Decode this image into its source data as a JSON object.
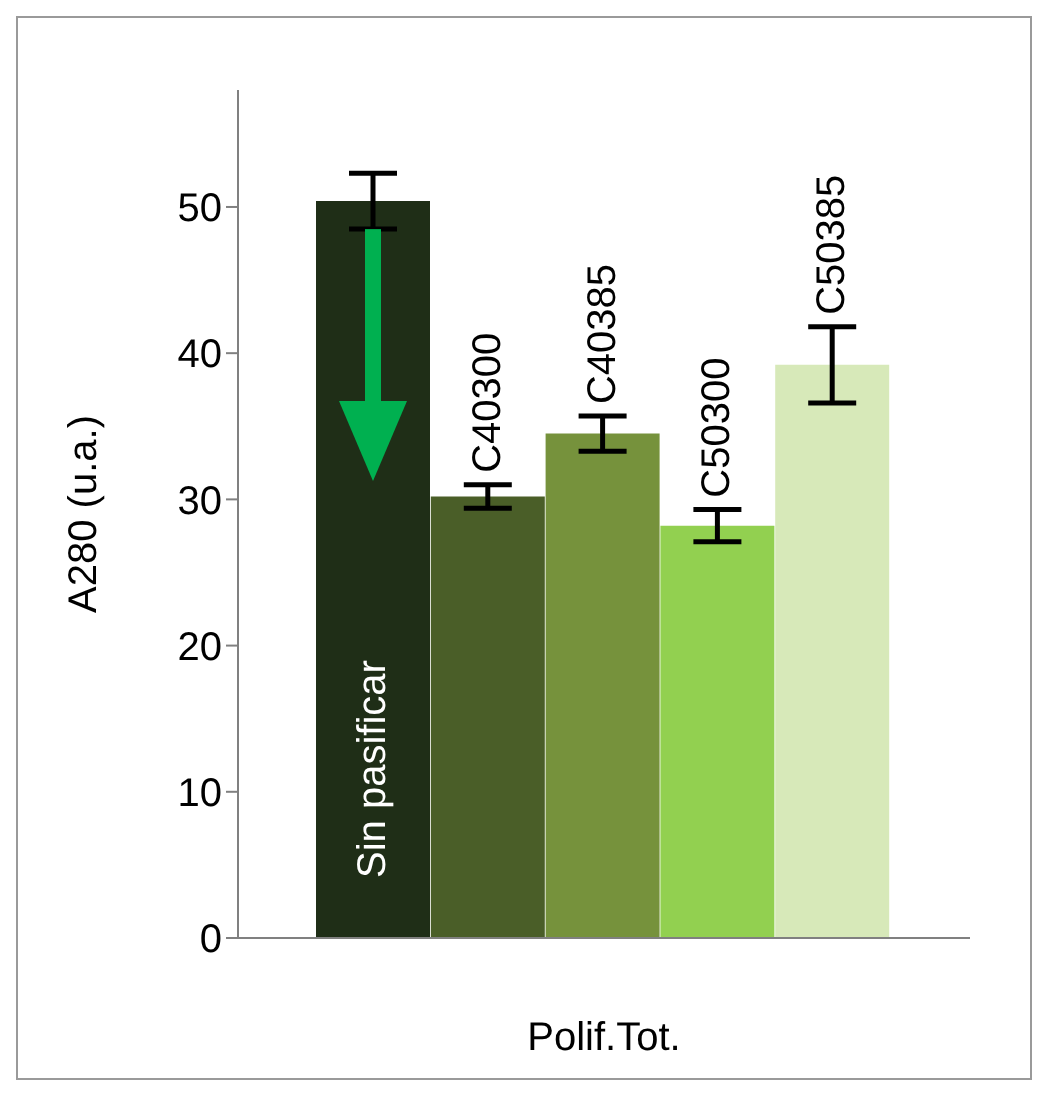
{
  "chart_data": {
    "type": "bar",
    "xlabel": "Polif.Tot.",
    "ylabel": "A280 (u.a.)",
    "categories": [
      "Sin pasificar",
      "C40300",
      "C40385",
      "C50300",
      "C50385"
    ],
    "values": [
      50.4,
      30.2,
      34.5,
      28.2,
      39.2
    ],
    "errors": [
      1.9,
      0.8,
      1.2,
      1.1,
      2.6
    ],
    "colors": [
      "#1f2e17",
      "#4a5e28",
      "#76923c",
      "#92d050",
      "#d7e9b9"
    ],
    "ylim": [
      0,
      58
    ],
    "yticks": [
      0,
      10,
      20,
      30,
      40,
      50
    ],
    "tick_labels": "y"
  }
}
